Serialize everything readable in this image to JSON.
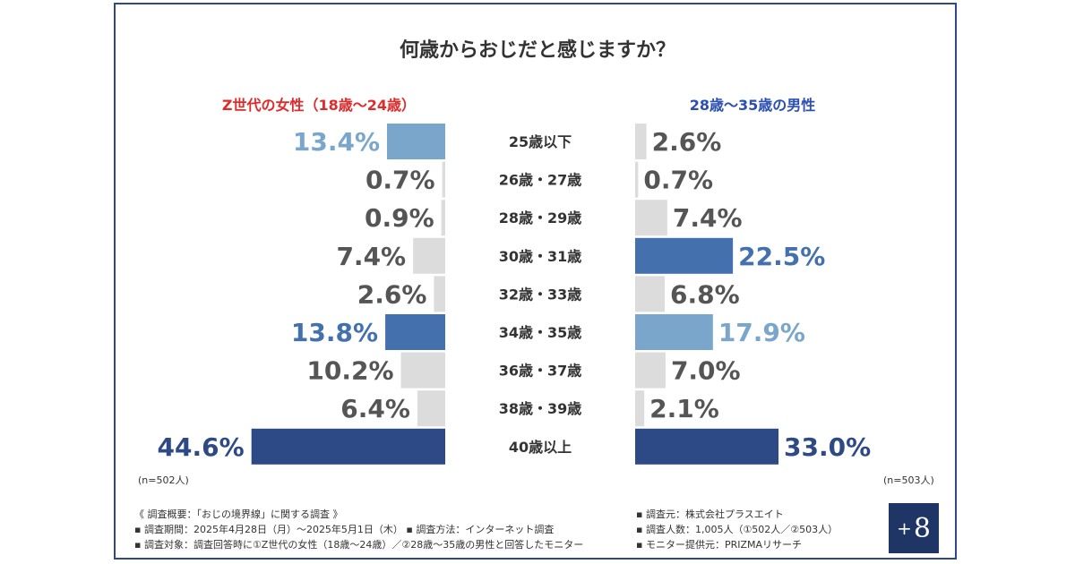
{
  "title": "何歳からおじだと感じますか？",
  "chart_data": {
    "type": "bar",
    "categories": [
      "25歳以下",
      "26歳・27歳",
      "28歳・29歳",
      "30歳・31歳",
      "32歳・33歳",
      "34歳・35歳",
      "36歳・37歳",
      "38歳・39歳",
      "40歳以上"
    ],
    "series": [
      {
        "name": "Z世代の女性（18歳〜24歳）",
        "values": [
          13.4,
          0.7,
          0.9,
          7.4,
          2.6,
          13.8,
          10.2,
          6.4,
          44.6
        ],
        "labels": [
          "13.4%",
          "0.7%",
          "0.9%",
          "7.4%",
          "2.6%",
          "13.8%",
          "10.2%",
          "6.4%",
          "44.6%"
        ]
      },
      {
        "name": "28歳〜35歳の男性",
        "values": [
          2.6,
          0.7,
          7.4,
          22.5,
          6.8,
          17.9,
          7.0,
          2.1,
          33.0
        ],
        "labels": [
          "2.6%",
          "0.7%",
          "7.4%",
          "22.5%",
          "6.8%",
          "17.9%",
          "7.0%",
          "2.1%",
          "33.0%"
        ]
      }
    ],
    "colors": {
      "top1": "#2e4a86",
      "top2": "#4470ae",
      "top3": "#7aa6cc",
      "other": "#dcdcdc",
      "other_text": "#555555"
    },
    "ranks": [
      [
        3,
        0,
        0,
        0,
        0,
        2,
        0,
        0,
        1
      ],
      [
        0,
        0,
        0,
        2,
        0,
        3,
        0,
        0,
        1
      ]
    ]
  },
  "left_n": "(n=502人)",
  "right_n": "(n=503人)",
  "footnotes": [
    "《 調査概要：「おじの境界線」に関する調査 》",
    "▪ 調査期間：2025年4月28日（月）〜2025年5月1日（木） ▪ 調査方法：インターネット調査",
    "▪ 調査対象：調査回答時に①Z世代の女性（18歳〜24歳）／②28歳〜35歳の男性と回答したモニター"
  ],
  "footnotes_right": [
    "▪ 調査元：株式会社プラスエイト",
    "▪ 調査人数：1,005人（①502人／②503人）",
    "▪ モニター提供元：PRIZMAリサーチ"
  ],
  "logo": {
    "plus": "+",
    "digit": "8"
  }
}
